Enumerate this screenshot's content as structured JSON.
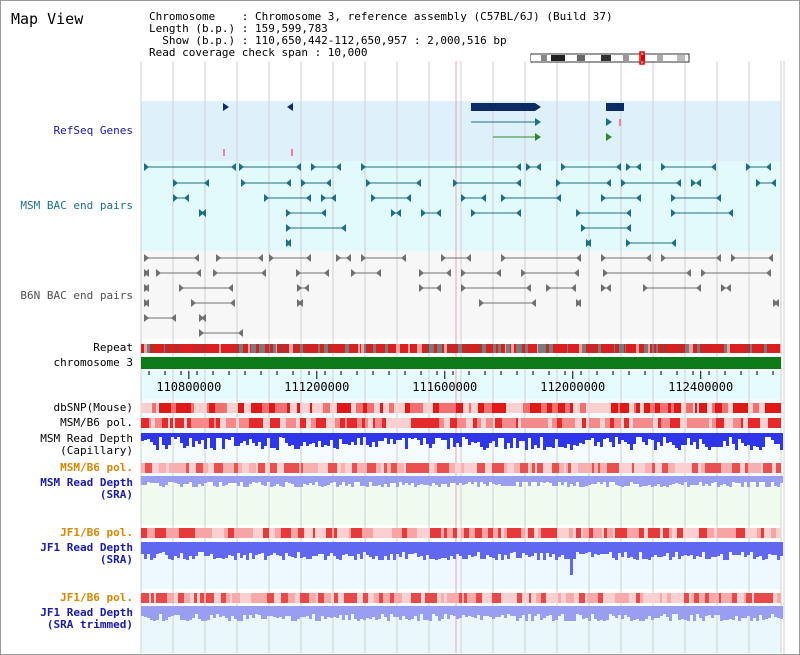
{
  "title": "Map View",
  "info": {
    "chromosome_line": "Chromosome    : Chromosome 3, reference assembly (C57BL/6J) (Build 37)",
    "length_line": "Length (b.p.) : 159,599,783",
    "show_line": "  Show (b.p.) : 110,650,442-112,650,957 : 2,000,516 bp",
    "coverage_line": "Read coverage check span : 10,000"
  },
  "tracks": {
    "refseq": "RefSeq Genes",
    "msm_bac": "MSM BAC end pairs",
    "b6n_bac": "B6N BAC end pairs",
    "repeat": "Repeat",
    "chromosome": "chromosome 3",
    "dbsnp": "dbSNP(Mouse)",
    "msm_b6_pol_1": "MSM/B6 pol.",
    "msm_depth_cap_1": "MSM Read Depth",
    "msm_depth_cap_2": "(Capillary)",
    "msm_b6_pol_2": "MSM/B6 pol.",
    "msm_depth_sra_1": "MSM Read Depth",
    "msm_depth_sra_2": "(SRA)",
    "jf1_b6_pol_1": "JF1/B6 pol.",
    "jf1_depth_sra_1": "JF1 Read Depth",
    "jf1_depth_sra_2": "(SRA)",
    "jf1_b6_pol_2": "JF1/B6 pol.",
    "jf1_depth_trim_1": "JF1 Read Depth",
    "jf1_depth_trim_2": "(SRA trimmed)"
  },
  "axis": {
    "ticks": [
      "110800000",
      "111200000",
      "111600000",
      "112000000",
      "112400000"
    ],
    "tick_values": [
      110800000,
      111200000,
      111600000,
      112000000,
      112400000
    ],
    "range": [
      110650442,
      112650957
    ]
  },
  "colors": {
    "refseq_bg": "#def1fb",
    "bac_bg": "#e3fafc",
    "b6n_bg": "#f5f5f5",
    "gene_dark": "#0a2b63",
    "msm_bac": "#1d6f86",
    "b6n_bac": "#707070",
    "chromosome": "#0c7a18",
    "snp_red": "#e23030",
    "depth_blue": "#2f35e8",
    "light_blue": "#9a9ef0",
    "jf1_blue": "#6168f0",
    "label_blue": "#1a1aa8",
    "label_orange": "#d98600",
    "grid": "#cfcfcf"
  }
}
